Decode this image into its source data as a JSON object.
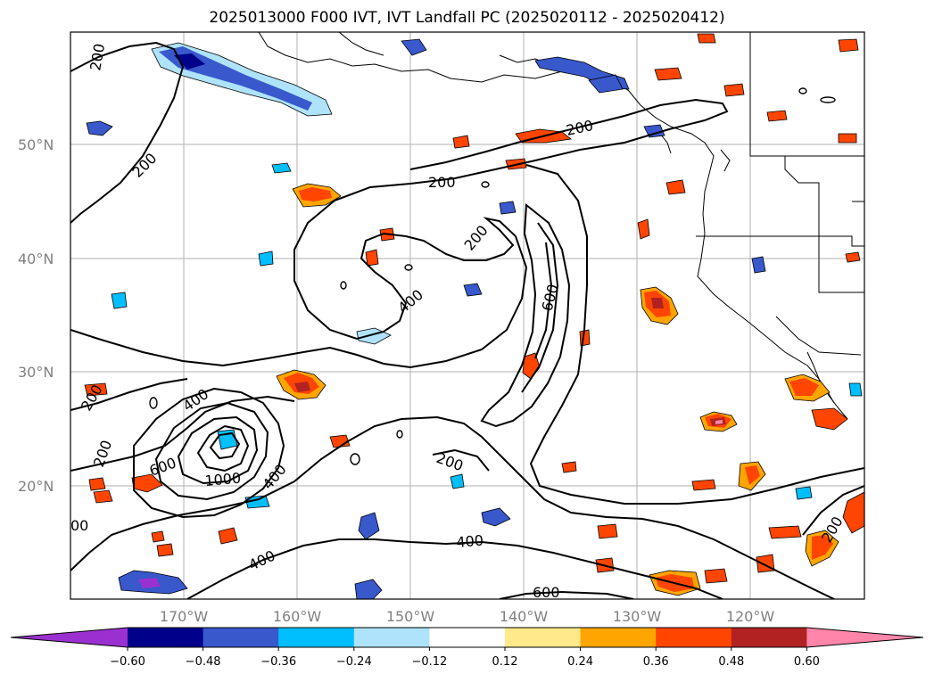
{
  "title": "2025013000 F000 IVT, IVT Landfall PC (2025020112 - 2025020412)",
  "map": {
    "lat_labels": [
      "50°N",
      "40°N",
      "30°N",
      "20°N"
    ],
    "lon_labels": [
      "170°W",
      "160°W",
      "150°W",
      "140°W",
      "130°W",
      "120°W"
    ],
    "contour_labels": [
      {
        "text": "200"
      },
      {
        "text": "200"
      },
      {
        "text": "200"
      },
      {
        "text": "200"
      },
      {
        "text": "200"
      },
      {
        "text": "400"
      },
      {
        "text": "600"
      },
      {
        "text": "200"
      },
      {
        "text": "400"
      },
      {
        "text": "600"
      },
      {
        "text": "1000"
      },
      {
        "text": "400"
      },
      {
        "text": "200"
      },
      {
        "text": "400"
      },
      {
        "text": "400"
      },
      {
        "text": "600"
      },
      {
        "text": "200"
      },
      {
        "text": "00"
      },
      {
        "text": "200"
      }
    ]
  },
  "colorbar": {
    "ticks": [
      "−0.60",
      "−0.48",
      "−0.36",
      "−0.24",
      "−0.12",
      "0.12",
      "0.24",
      "0.36",
      "0.48",
      "0.60"
    ],
    "colors": [
      "#9b30d0",
      "#00008b",
      "#3858cc",
      "#00bfff",
      "#aee3fb",
      "#ffffff",
      "#ffe98a",
      "#ffa500",
      "#ff4500",
      "#b22222",
      "#ff85aa"
    ]
  }
}
